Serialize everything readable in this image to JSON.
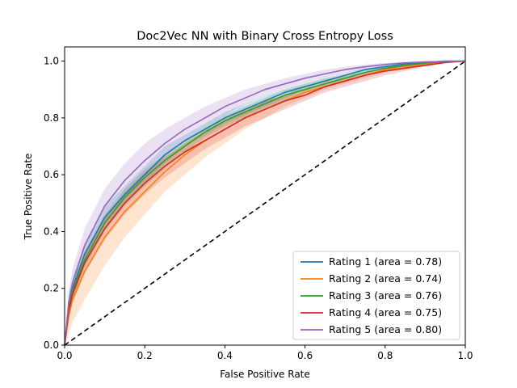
{
  "chart_data": {
    "type": "line",
    "title": "Doc2Vec NN with Binary Cross Entropy Loss",
    "xlabel": "False Positive Rate",
    "ylabel": "True Positive Rate",
    "xlim": [
      0.0,
      1.0
    ],
    "ylim": [
      0.0,
      1.05
    ],
    "xticks": [
      "0.0",
      "0.2",
      "0.4",
      "0.6",
      "0.8",
      "1.0"
    ],
    "yticks": [
      "0.0",
      "0.2",
      "0.4",
      "0.6",
      "0.8",
      "1.0"
    ],
    "grid": false,
    "legend_position": "lower-right",
    "x": [
      0.0,
      0.01,
      0.02,
      0.05,
      0.1,
      0.15,
      0.2,
      0.25,
      0.3,
      0.35,
      0.4,
      0.45,
      0.5,
      0.55,
      0.6,
      0.65,
      0.7,
      0.75,
      0.8,
      0.85,
      0.9,
      0.95,
      1.0
    ],
    "series": [
      {
        "name": "Rating 1 (area = 0.78)",
        "color": "#1f77b4",
        "band_color": "#1f77b4",
        "values": [
          0.0,
          0.14,
          0.2,
          0.32,
          0.45,
          0.53,
          0.6,
          0.67,
          0.72,
          0.76,
          0.8,
          0.83,
          0.86,
          0.89,
          0.91,
          0.93,
          0.95,
          0.97,
          0.98,
          0.99,
          0.995,
          1.0,
          1.0
        ],
        "lower": [
          0.0,
          0.1,
          0.16,
          0.28,
          0.41,
          0.5,
          0.57,
          0.64,
          0.7,
          0.74,
          0.78,
          0.81,
          0.84,
          0.87,
          0.9,
          0.92,
          0.94,
          0.96,
          0.975,
          0.985,
          0.99,
          0.997,
          1.0
        ],
        "upper": [
          0.0,
          0.18,
          0.24,
          0.36,
          0.49,
          0.56,
          0.63,
          0.7,
          0.74,
          0.78,
          0.82,
          0.85,
          0.88,
          0.9,
          0.92,
          0.94,
          0.96,
          0.975,
          0.985,
          0.993,
          0.998,
          1.0,
          1.0
        ]
      },
      {
        "name": "Rating 2 (area = 0.74)",
        "color": "#ff7f0e",
        "band_color": "#ff7f0e",
        "values": [
          0.0,
          0.1,
          0.16,
          0.26,
          0.38,
          0.47,
          0.54,
          0.61,
          0.67,
          0.72,
          0.76,
          0.8,
          0.83,
          0.86,
          0.89,
          0.91,
          0.93,
          0.95,
          0.97,
          0.98,
          0.99,
          0.997,
          1.0
        ],
        "lower": [
          0.0,
          0.04,
          0.08,
          0.16,
          0.28,
          0.38,
          0.46,
          0.54,
          0.6,
          0.66,
          0.71,
          0.76,
          0.8,
          0.84,
          0.87,
          0.9,
          0.92,
          0.94,
          0.96,
          0.975,
          0.985,
          0.995,
          1.0
        ],
        "upper": [
          0.0,
          0.15,
          0.22,
          0.33,
          0.45,
          0.53,
          0.6,
          0.66,
          0.71,
          0.76,
          0.8,
          0.83,
          0.86,
          0.88,
          0.91,
          0.93,
          0.95,
          0.96,
          0.975,
          0.985,
          0.993,
          0.998,
          1.0
        ]
      },
      {
        "name": "Rating 3 (area = 0.76)",
        "color": "#2ca02c",
        "band_color": "#2ca02c",
        "values": [
          0.0,
          0.13,
          0.19,
          0.3,
          0.43,
          0.52,
          0.59,
          0.65,
          0.7,
          0.75,
          0.79,
          0.82,
          0.85,
          0.88,
          0.9,
          0.92,
          0.94,
          0.96,
          0.975,
          0.985,
          0.993,
          0.998,
          1.0
        ],
        "lower": [
          0.0,
          0.1,
          0.16,
          0.27,
          0.4,
          0.49,
          0.56,
          0.62,
          0.68,
          0.73,
          0.77,
          0.8,
          0.83,
          0.86,
          0.89,
          0.91,
          0.93,
          0.95,
          0.97,
          0.98,
          0.99,
          0.997,
          1.0
        ],
        "upper": [
          0.0,
          0.16,
          0.22,
          0.33,
          0.46,
          0.55,
          0.62,
          0.67,
          0.72,
          0.77,
          0.81,
          0.84,
          0.87,
          0.9,
          0.92,
          0.94,
          0.95,
          0.97,
          0.98,
          0.99,
          0.996,
          1.0,
          1.0
        ]
      },
      {
        "name": "Rating 4 (area = 0.75)",
        "color": "#d62728",
        "band_color": "#d62728",
        "values": [
          0.0,
          0.12,
          0.18,
          0.29,
          0.41,
          0.5,
          0.57,
          0.63,
          0.68,
          0.72,
          0.76,
          0.8,
          0.83,
          0.86,
          0.88,
          0.91,
          0.93,
          0.95,
          0.965,
          0.975,
          0.985,
          0.995,
          1.0
        ],
        "lower": [
          0.0,
          0.09,
          0.15,
          0.25,
          0.37,
          0.46,
          0.53,
          0.59,
          0.64,
          0.69,
          0.73,
          0.77,
          0.8,
          0.83,
          0.86,
          0.89,
          0.91,
          0.93,
          0.95,
          0.965,
          0.98,
          0.992,
          1.0
        ],
        "upper": [
          0.0,
          0.15,
          0.21,
          0.32,
          0.45,
          0.54,
          0.61,
          0.66,
          0.71,
          0.75,
          0.79,
          0.83,
          0.86,
          0.88,
          0.9,
          0.92,
          0.94,
          0.96,
          0.975,
          0.985,
          0.99,
          0.998,
          1.0
        ]
      },
      {
        "name": "Rating 5 (area = 0.80)",
        "color": "#9467bd",
        "band_color": "#9467bd",
        "values": [
          0.0,
          0.15,
          0.22,
          0.35,
          0.49,
          0.58,
          0.65,
          0.71,
          0.76,
          0.8,
          0.84,
          0.87,
          0.9,
          0.92,
          0.94,
          0.955,
          0.97,
          0.98,
          0.988,
          0.994,
          0.997,
          0.999,
          1.0
        ],
        "lower": [
          0.0,
          0.12,
          0.18,
          0.3,
          0.43,
          0.52,
          0.59,
          0.66,
          0.72,
          0.77,
          0.81,
          0.85,
          0.88,
          0.9,
          0.92,
          0.94,
          0.96,
          0.97,
          0.98,
          0.99,
          0.995,
          0.998,
          1.0
        ],
        "upper": [
          0.0,
          0.19,
          0.27,
          0.41,
          0.55,
          0.64,
          0.71,
          0.76,
          0.8,
          0.84,
          0.87,
          0.9,
          0.92,
          0.94,
          0.955,
          0.97,
          0.98,
          0.988,
          0.994,
          0.997,
          0.999,
          1.0,
          1.0
        ]
      }
    ],
    "reference_line": {
      "x": [
        0.0,
        1.0
      ],
      "y": [
        0.0,
        1.0
      ],
      "color": "#000000",
      "style": "dashed"
    }
  }
}
